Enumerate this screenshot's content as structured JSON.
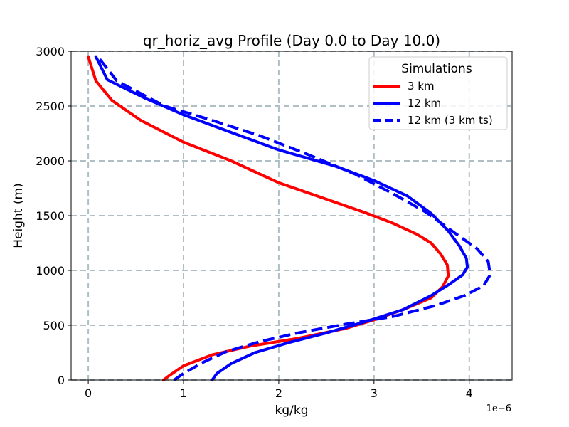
{
  "chart_data": {
    "type": "line",
    "title": "qr_horiz_avg Profile (Day 0.0 to Day 10.0)",
    "xlabel": "kg/kg",
    "ylabel": "Height (m)",
    "x_offset_label": "1e−6",
    "xlim": [
      -0.18,
      4.45
    ],
    "ylim": [
      0,
      3000
    ],
    "x_ticks": [
      0,
      1,
      2,
      3,
      4
    ],
    "x_tick_labels": [
      "0",
      "1",
      "2",
      "3",
      "4"
    ],
    "y_ticks": [
      0,
      500,
      1000,
      1500,
      2000,
      2500,
      3000
    ],
    "y_tick_labels": [
      "0",
      "500",
      "1000",
      "1500",
      "2000",
      "2500",
      "3000"
    ],
    "grid": true,
    "legend": {
      "title": "Simulations",
      "placement": "top-right"
    },
    "series": [
      {
        "name": "3 km",
        "color": "#ff0000",
        "style": "solid",
        "x": [
          0.79,
          0.85,
          1.0,
          1.3,
          1.7,
          2.2,
          2.7,
          3.0,
          3.3,
          3.6,
          3.72,
          3.78,
          3.77,
          3.7,
          3.6,
          3.45,
          3.2,
          2.9,
          2.5,
          2.0,
          1.5,
          1.0,
          0.55,
          0.25,
          0.08,
          0.0
        ],
        "y": [
          0,
          40,
          130,
          230,
          310,
          380,
          470,
          550,
          640,
          750,
          850,
          950,
          1050,
          1150,
          1250,
          1330,
          1430,
          1530,
          1650,
          1800,
          2000,
          2170,
          2370,
          2550,
          2730,
          2950
        ]
      },
      {
        "name": "12 km",
        "color": "#0000ff",
        "style": "solid",
        "x": [
          1.3,
          1.35,
          1.5,
          1.75,
          2.1,
          2.5,
          2.9,
          3.3,
          3.6,
          3.8,
          3.93,
          3.98,
          3.97,
          3.9,
          3.78,
          3.6,
          3.35,
          3.0,
          2.6,
          2.0,
          1.5,
          1.0,
          0.6,
          0.2,
          0.08
        ],
        "y": [
          0,
          60,
          150,
          250,
          340,
          430,
          530,
          640,
          770,
          880,
          960,
          1030,
          1110,
          1220,
          1360,
          1520,
          1680,
          1820,
          1950,
          2100,
          2260,
          2420,
          2570,
          2740,
          2950
        ]
      },
      {
        "name": "12 km (3 km ts)",
        "color": "#0000ff",
        "style": "dashed",
        "x": [
          0.9,
          1.0,
          1.2,
          1.45,
          1.8,
          2.2,
          2.7,
          3.2,
          3.65,
          3.95,
          4.15,
          4.22,
          4.2,
          4.08,
          3.85,
          3.55,
          3.2,
          2.8,
          2.3,
          1.8,
          1.3,
          0.8,
          0.3,
          0.1
        ],
        "y": [
          0,
          60,
          160,
          260,
          350,
          430,
          510,
          580,
          680,
          770,
          860,
          960,
          1080,
          1200,
          1340,
          1530,
          1700,
          1880,
          2060,
          2230,
          2370,
          2500,
          2730,
          2950
        ]
      }
    ]
  }
}
